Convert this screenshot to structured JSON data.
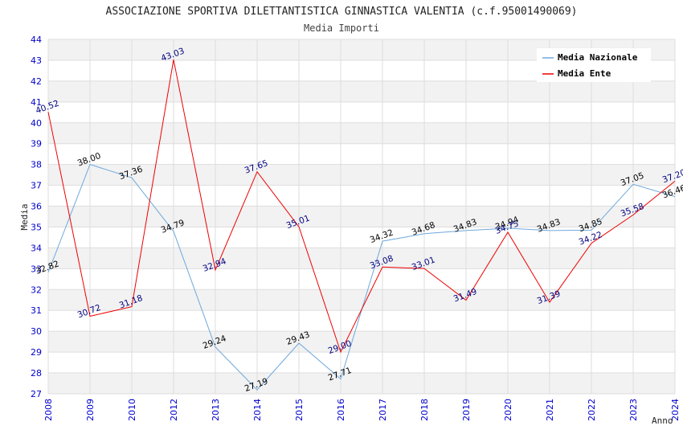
{
  "chart_data": {
    "type": "line",
    "title": "ASSOCIAZIONE SPORTIVA DILETTANTISTICA GINNASTICA VALENTIA (c.f.95001490069)",
    "subtitle": "Media Importi",
    "xlabel": "Anno",
    "ylabel": "Media",
    "ylim": [
      27,
      44
    ],
    "yticks": [
      "27",
      "28",
      "29",
      "30",
      "31",
      "32",
      "33",
      "34",
      "35",
      "36",
      "37",
      "38",
      "39",
      "40",
      "41",
      "42",
      "43",
      "44"
    ],
    "categories": [
      "2008",
      "2009",
      "2010",
      "2012",
      "2013",
      "2014",
      "2015",
      "2016",
      "2017",
      "2018",
      "2019",
      "2020",
      "2021",
      "2022",
      "2023",
      "2024"
    ],
    "legend_position": "top-right",
    "series": [
      {
        "name": "Media Nazionale",
        "color": "#6fa8dc",
        "label_color": "#000000",
        "values": [
          32.82,
          38.0,
          37.36,
          34.79,
          29.24,
          27.19,
          29.43,
          27.71,
          34.32,
          34.68,
          34.83,
          34.94,
          34.83,
          34.85,
          37.05,
          36.46
        ],
        "labels": [
          "32.82",
          "38.00",
          "37.36",
          "34.79",
          "29.24",
          "27.19",
          "29.43",
          "27.71",
          "34.32",
          "34.68",
          "34.83",
          "34.94",
          "34.83",
          "34.85",
          "37.05",
          "36.46"
        ]
      },
      {
        "name": "Media Ente",
        "color": "#ee0000",
        "label_color": "#000080",
        "values": [
          40.52,
          30.72,
          31.18,
          43.03,
          32.94,
          37.65,
          35.01,
          29.0,
          33.08,
          33.01,
          31.49,
          34.75,
          31.39,
          34.22,
          35.58,
          37.2
        ],
        "labels": [
          "40.52",
          "30.72",
          "31.18",
          "43.03",
          "32.94",
          "37.65",
          "35.01",
          "29.00",
          "33.08",
          "33.01",
          "31.49",
          "34.75",
          "31.39",
          "34.22",
          "35.58",
          "37.20"
        ]
      }
    ]
  }
}
